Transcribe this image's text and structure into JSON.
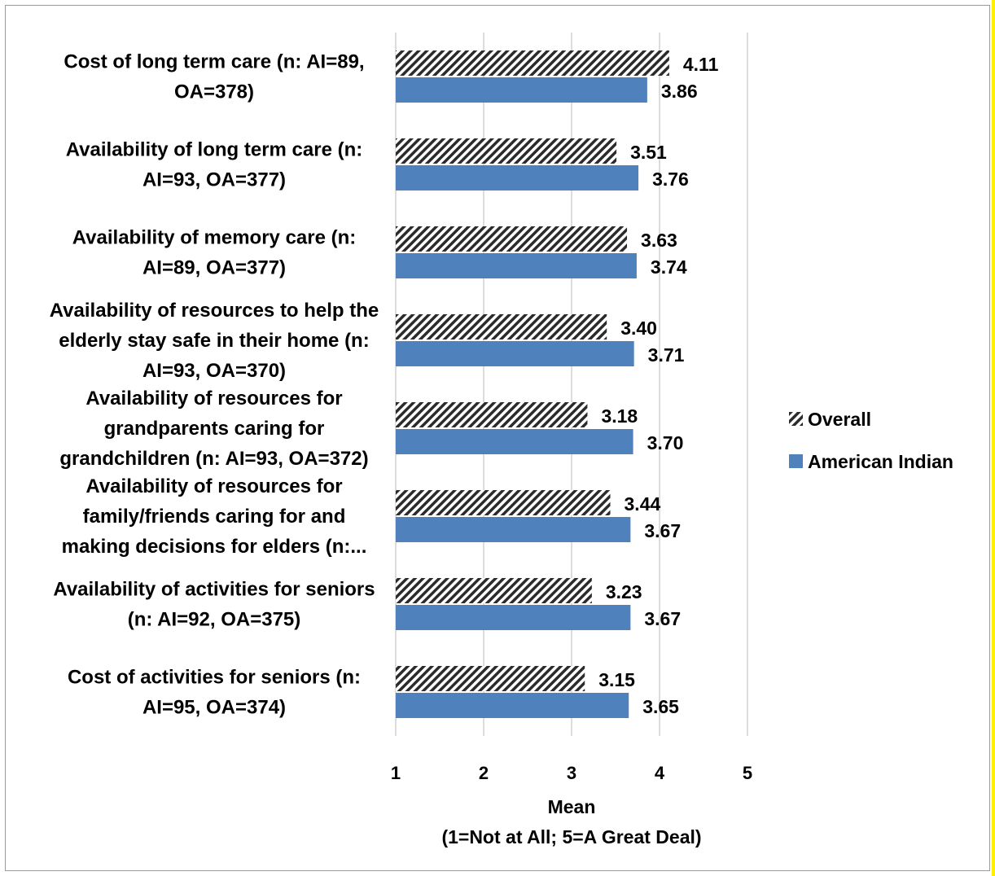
{
  "chart_data": {
    "type": "bar",
    "orientation": "horizontal",
    "categories": [
      [
        "Cost of long term care (n: AI=89,",
        "OA=378)"
      ],
      [
        "Availability of long term care (n:",
        "AI=93, OA=377)"
      ],
      [
        "Availability of memory care (n:",
        "AI=89, OA=377)"
      ],
      [
        "Availability of resources to help the",
        "elderly stay safe in their home (n:",
        "AI=93, OA=370)"
      ],
      [
        "Availability of resources for",
        "grandparents caring for",
        "grandchildren (n: AI=93, OA=372)"
      ],
      [
        "Availability of resources for",
        "family/friends caring for and",
        "making decisions for elders (n:..."
      ],
      [
        "Availability of activities for seniors",
        "(n: AI=92, OA=375)"
      ],
      [
        "Cost of activities for seniors (n:",
        "AI=95, OA=374)"
      ]
    ],
    "series": [
      {
        "name": "Overall",
        "values": [
          4.11,
          3.51,
          3.63,
          3.4,
          3.18,
          3.44,
          3.23,
          3.15
        ],
        "labels": [
          "4.11",
          "3.51",
          "3.63",
          "3.40",
          "3.18",
          "3.44",
          "3.23",
          "3.15"
        ],
        "style": "hatched",
        "color": "#2b2b2b"
      },
      {
        "name": "American Indian",
        "values": [
          3.86,
          3.76,
          3.74,
          3.71,
          3.7,
          3.67,
          3.67,
          3.65
        ],
        "labels": [
          "3.86",
          "3.76",
          "3.74",
          "3.71",
          "3.70",
          "3.67",
          "3.67",
          "3.65"
        ],
        "style": "solid",
        "color": "#4f81bd"
      }
    ],
    "xlim": [
      1,
      5
    ],
    "xticks": [
      "1",
      "2",
      "3",
      "4",
      "5"
    ],
    "xlabel_line1": "Mean",
    "xlabel_line2": "(1=Not at All; 5=A Great Deal)",
    "grid": "vertical",
    "legend_position": "right"
  }
}
